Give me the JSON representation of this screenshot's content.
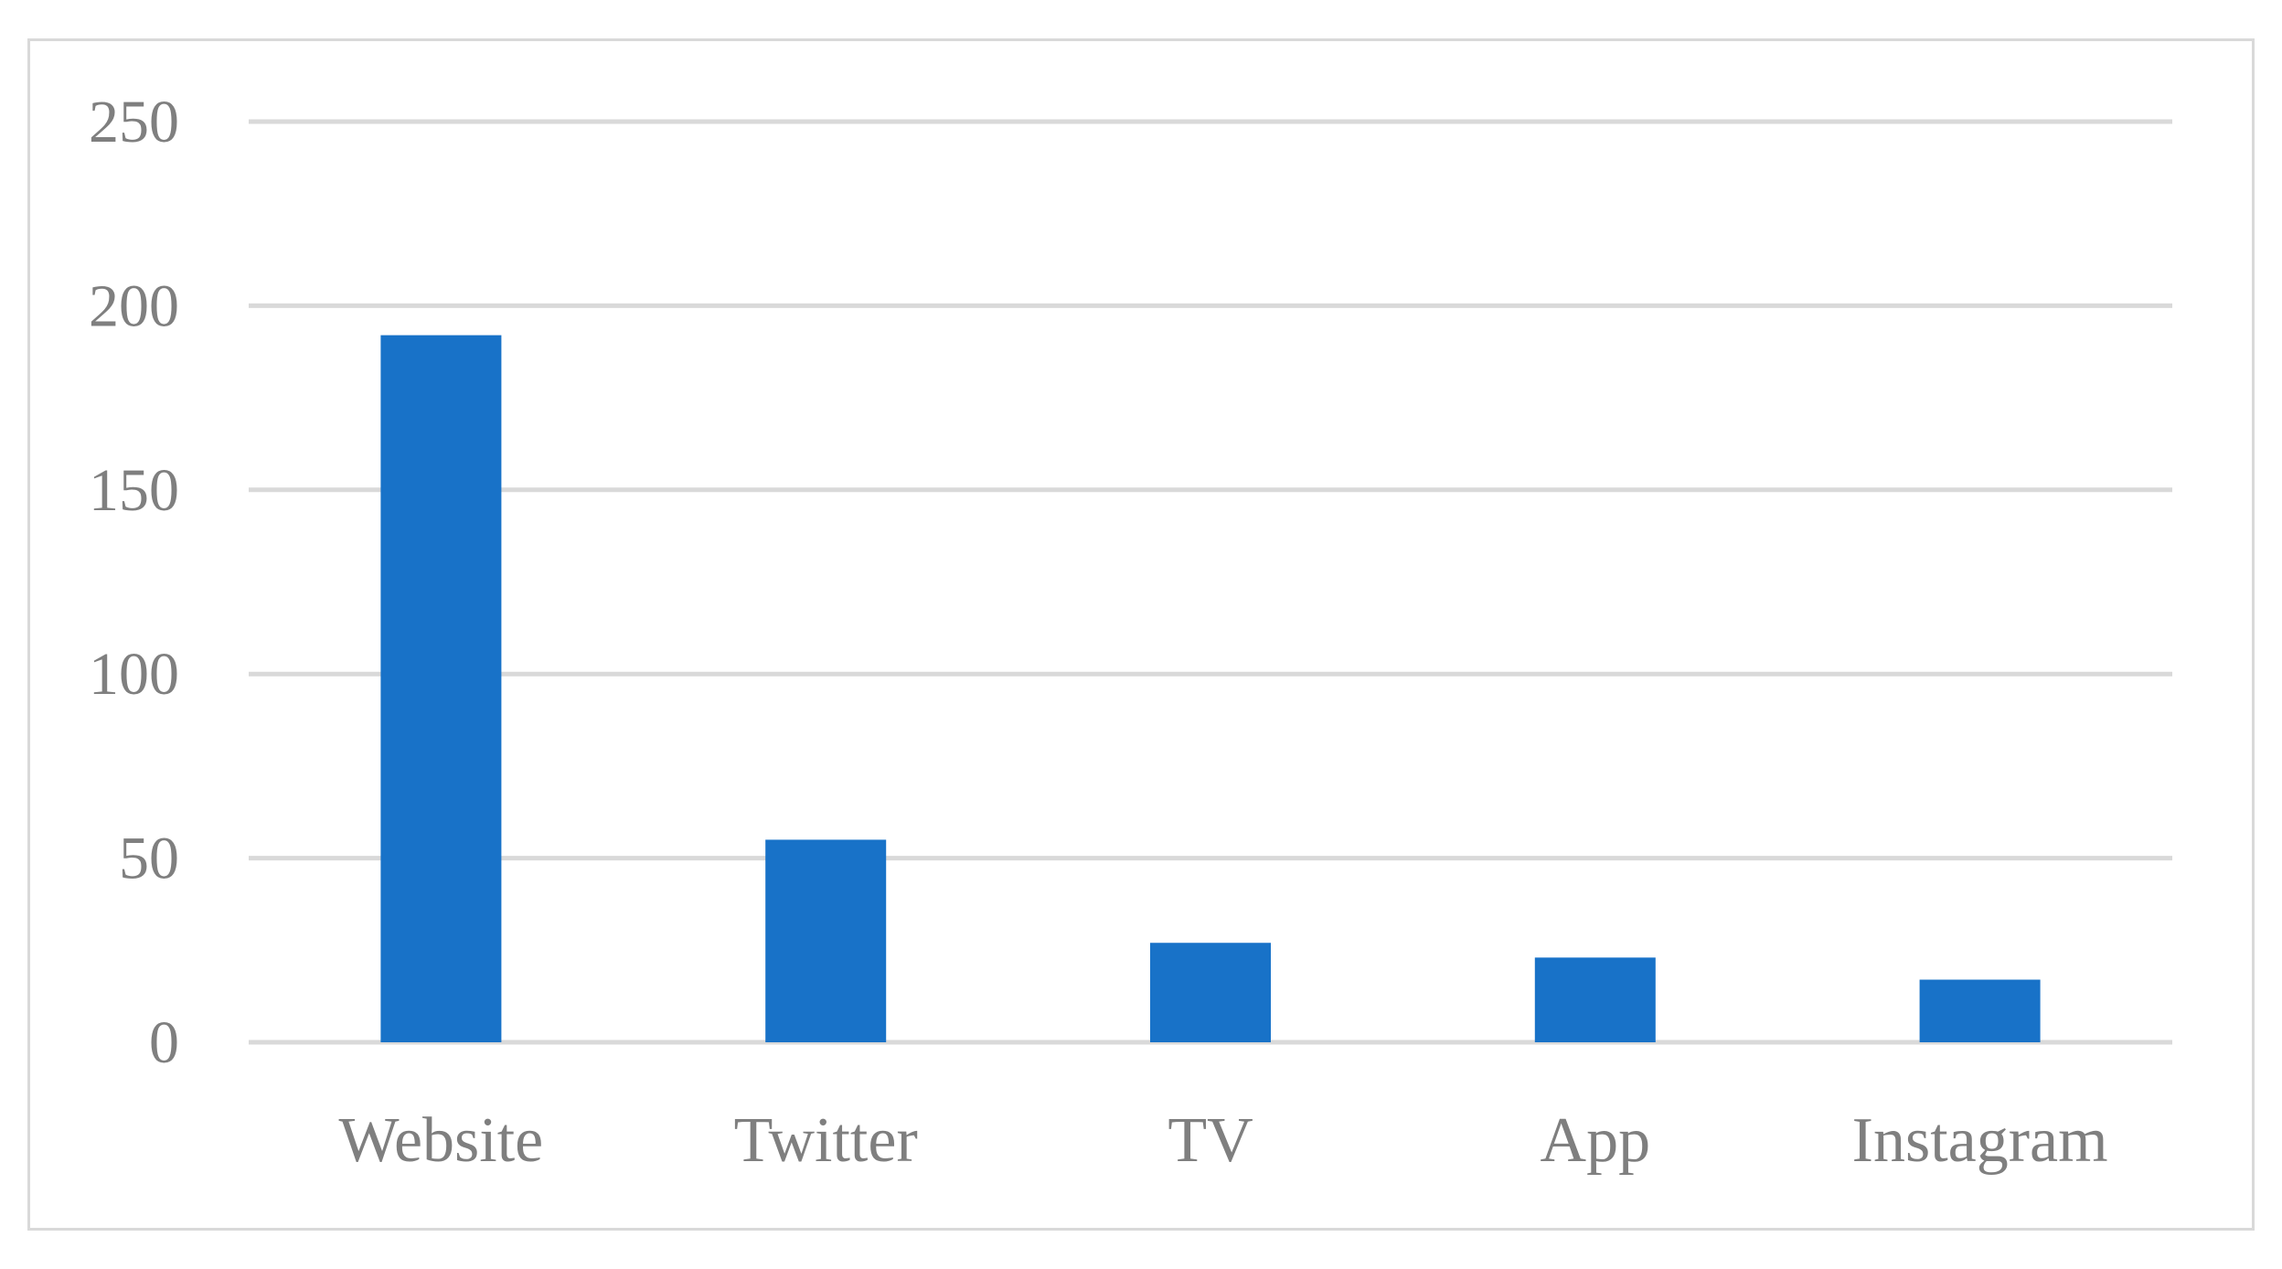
{
  "chart_data": {
    "type": "bar",
    "categories": [
      "Website",
      "Twitter",
      "TV",
      "App",
      "Instagram"
    ],
    "values": [
      192,
      55,
      27,
      23,
      17
    ],
    "ylim": [
      0,
      250
    ],
    "yticks": [
      0,
      50,
      100,
      150,
      200,
      250
    ],
    "ytick_labels": [
      "0",
      "50",
      "100",
      "150",
      "200",
      "250"
    ],
    "grid": true,
    "legend": "none",
    "colors": {
      "bar": "#1872c8",
      "grid": "#d9d9d9",
      "text": "#7f7f7f",
      "frame": "#d9d9d9"
    }
  }
}
